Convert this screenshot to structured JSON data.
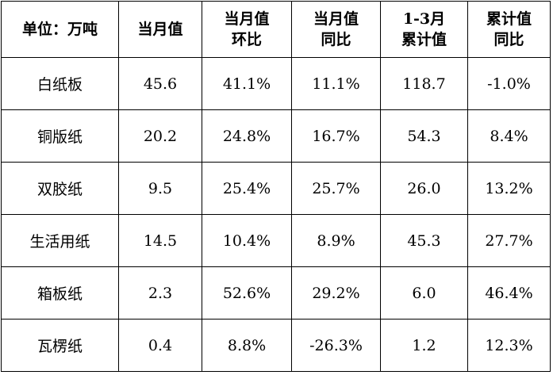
{
  "table": {
    "header": [
      [
        "单位：万吨"
      ],
      [
        "当月值"
      ],
      [
        "当月值",
        "环比"
      ],
      [
        "当月值",
        "同比"
      ],
      [
        "1-3月",
        "累计值"
      ],
      [
        "累计值",
        "同比"
      ]
    ],
    "rows": [
      [
        "白纸板",
        "45.6",
        "41.1%",
        "11.1%",
        "118.7",
        "-1.0%"
      ],
      [
        "铜版纸",
        "20.2",
        "24.8%",
        "16.7%",
        "54.3",
        "8.4%"
      ],
      [
        "双胶纸",
        "9.5",
        "25.4%",
        "25.7%",
        "26.0",
        "13.2%"
      ],
      [
        "生活用纸",
        "14.5",
        "10.4%",
        "8.9%",
        "45.3",
        "27.7%"
      ],
      [
        "箱板纸",
        "2.3",
        "52.6%",
        "29.2%",
        "6.0",
        "46.4%"
      ],
      [
        "瓦楞纸",
        "0.4",
        "8.8%",
        "-26.3%",
        "1.2",
        "12.3%"
      ]
    ]
  }
}
